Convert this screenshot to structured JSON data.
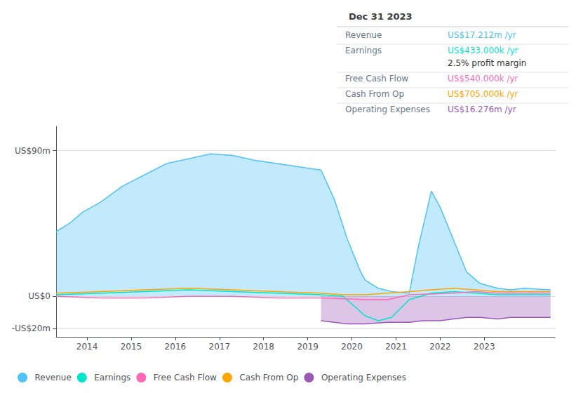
{
  "chart_data": {
    "type": "line",
    "title": "Dec 31 2023",
    "xlim": [
      2013.0,
      2024.3
    ],
    "xticks": [
      {
        "value": 2013.7,
        "label": "2014"
      },
      {
        "value": 2014.7,
        "label": "2015"
      },
      {
        "value": 2015.7,
        "label": "2016"
      },
      {
        "value": 2016.7,
        "label": "2017"
      },
      {
        "value": 2017.7,
        "label": "2018"
      },
      {
        "value": 2018.7,
        "label": "2019"
      },
      {
        "value": 2019.7,
        "label": "2020"
      },
      {
        "value": 2020.7,
        "label": "2021"
      },
      {
        "value": 2021.7,
        "label": "2022"
      },
      {
        "value": 2022.7,
        "label": "2023"
      }
    ],
    "ylim": [
      -25,
      105
    ],
    "yticks": [
      {
        "value": -20,
        "label": "-US$20m"
      },
      {
        "value": 0,
        "label": "US$0"
      },
      {
        "value": 90,
        "label": "US$90m"
      }
    ],
    "grid": true,
    "legend": "bottom left",
    "series": [
      {
        "name": "Revenue",
        "type": "area",
        "color": "#4fc3f7",
        "x": [
          2013.0,
          2013.3,
          2013.6,
          2014.0,
          2014.5,
          2015.0,
          2015.5,
          2016.0,
          2016.5,
          2017.0,
          2017.5,
          2018.0,
          2018.5,
          2019.0,
          2019.3,
          2019.6,
          2019.9,
          2020.0,
          2020.3,
          2020.6,
          2021.0,
          2021.2,
          2021.5,
          2021.7,
          2022.0,
          2022.3,
          2022.6,
          2023.0,
          2023.3,
          2023.6,
          2024.2
        ],
        "values": [
          40,
          45,
          52,
          58,
          68,
          75,
          82,
          85,
          88,
          87,
          84,
          82,
          80,
          78,
          60,
          35,
          15,
          10,
          5,
          3,
          2,
          30,
          65,
          55,
          35,
          15,
          8,
          5,
          4,
          5,
          4
        ]
      },
      {
        "name": "Earnings",
        "type": "line",
        "color": "#00e5cc",
        "x": [
          2013.0,
          2014.0,
          2015.0,
          2016.0,
          2017.0,
          2018.0,
          2019.0,
          2019.5,
          2020.0,
          2020.3,
          2020.6,
          2021.0,
          2021.5,
          2022.0,
          2022.5,
          2023.0,
          2023.5,
          2024.2
        ],
        "values": [
          1,
          2,
          3,
          4,
          3,
          2,
          1,
          0,
          -12,
          -15,
          -13,
          -2,
          2,
          3,
          2,
          1,
          1,
          1
        ]
      },
      {
        "name": "Free Cash Flow",
        "type": "line",
        "color": "#ff69b4",
        "x": [
          2013.0,
          2014.0,
          2015.0,
          2016.0,
          2017.0,
          2018.0,
          2019.0,
          2020.0,
          2020.5,
          2021.0,
          2022.0,
          2022.5,
          2023.0,
          2023.5,
          2024.2
        ],
        "values": [
          0,
          -1,
          -1,
          0,
          0,
          -1,
          -1,
          -2,
          -2,
          1,
          2,
          3,
          2,
          2,
          2
        ]
      },
      {
        "name": "Cash From Op",
        "type": "line",
        "color": "#ffa500",
        "x": [
          2013.0,
          2014.0,
          2015.0,
          2016.0,
          2017.0,
          2018.0,
          2019.0,
          2019.5,
          2020.0,
          2020.5,
          2021.0,
          2021.5,
          2022.0,
          2022.5,
          2023.0,
          2023.5,
          2024.2
        ],
        "values": [
          2,
          3,
          4,
          5,
          4,
          3,
          2,
          1,
          1,
          2,
          3,
          4,
          5,
          4,
          3,
          3,
          3
        ]
      },
      {
        "name": "Operating Expenses",
        "type": "area",
        "color": "#9b59b6",
        "x": [
          2019.0,
          2019.3,
          2019.6,
          2020.0,
          2020.5,
          2021.0,
          2021.3,
          2021.7,
          2022.0,
          2022.3,
          2022.6,
          2023.0,
          2023.3,
          2023.6,
          2024.2
        ],
        "values": [
          -15,
          -16,
          -17,
          -17,
          -16,
          -16,
          -15,
          -15,
          -14,
          -13,
          -13,
          -14,
          -13,
          -13,
          -13
        ]
      }
    ],
    "annotations": [
      {
        "label": "Revenue",
        "value": "US$17.212m /yr",
        "color": "#4fc3f7"
      },
      {
        "label": "Earnings",
        "value": "US$433.000k /yr",
        "color": "#00e5cc",
        "note": "2.5% profit margin"
      },
      {
        "label": "Free Cash Flow",
        "value": "US$540.000k /yr",
        "color": "#ff69b4"
      },
      {
        "label": "Cash From Op",
        "value": "US$705.000k /yr",
        "color": "#ffa500"
      },
      {
        "label": "Operating Expenses",
        "value": "US$16.276m /yr",
        "color": "#9b59b6"
      }
    ]
  }
}
